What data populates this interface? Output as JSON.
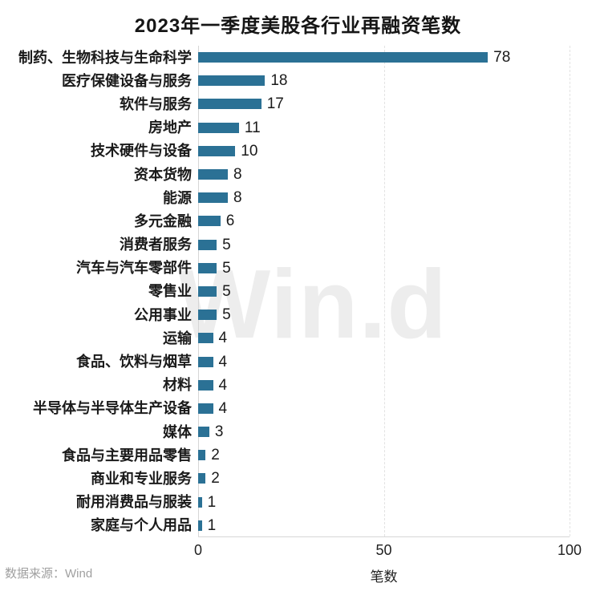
{
  "title": "2023年一季度美股各行业再融资笔数",
  "watermark": "Win.d",
  "footer": {
    "label": "数据来源：",
    "value": "Wind"
  },
  "chart_data": {
    "type": "bar",
    "orientation": "horizontal",
    "title": "2023年一季度美股各行业再融资笔数",
    "categories": [
      "制药、生物科技与生命科学",
      "医疗保健设备与服务",
      "软件与服务",
      "房地产",
      "技术硬件与设备",
      "资本货物",
      "能源",
      "多元金融",
      "消费者服务",
      "汽车与汽车零部件",
      "零售业",
      "公用事业",
      "运输",
      "食品、饮料与烟草",
      "材料",
      "半导体与半导体生产设备",
      "媒体",
      "食品与主要用品零售",
      "商业和专业服务",
      "耐用消费品与服装",
      "家庭与个人用品"
    ],
    "values": [
      78,
      18,
      17,
      11,
      10,
      8,
      8,
      6,
      5,
      5,
      5,
      5,
      4,
      4,
      4,
      4,
      3,
      2,
      2,
      1,
      1
    ],
    "xlabel": "笔数",
    "xlim": [
      0,
      100
    ],
    "xticks": [
      0,
      50,
      100
    ],
    "grid": "vertical-dashed",
    "legend": "none",
    "bar_color": "#2b7195"
  },
  "colors": {
    "bar": "#2b7195",
    "axis_line": "#d6d6d6",
    "gridline": "#e2e2e2",
    "text": "#1a1a1a",
    "muted_text": "#a0a0a0",
    "watermark": "#ededed",
    "background": "#ffffff"
  }
}
